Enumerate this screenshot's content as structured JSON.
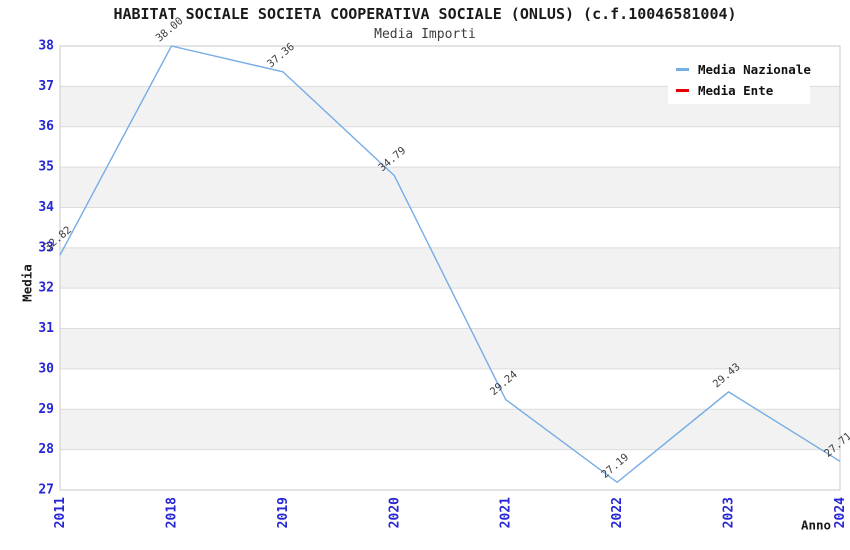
{
  "chart_data": {
    "type": "line",
    "title": "HABITAT SOCIALE SOCIETA COOPERATIVA SOCIALE (ONLUS) (c.f.10046581004)",
    "subtitle": "Media Importi",
    "xlabel": "Anno",
    "ylabel": "Media",
    "categories": [
      "2011",
      "2018",
      "2019",
      "2020",
      "2021",
      "2022",
      "2023",
      "2024"
    ],
    "series": [
      {
        "name": "Media Nazionale",
        "color": "#75ade6",
        "values": [
          32.82,
          38.0,
          37.36,
          34.79,
          29.24,
          27.19,
          29.43,
          27.71
        ],
        "point_labels": [
          "32.82",
          "38.00",
          "37.36",
          "34.79",
          "29.24",
          "27.19",
          "29.43",
          "27.71"
        ]
      },
      {
        "name": "Media Ente",
        "color": "#e60000",
        "values": [],
        "point_labels": []
      }
    ],
    "ylim": [
      27,
      38
    ],
    "yticks": [
      27,
      28,
      29,
      30,
      31,
      32,
      33,
      34,
      35,
      36,
      37,
      38
    ],
    "grid": true,
    "alternating_bands": true,
    "legend_position": "top-right",
    "styles": {
      "tick_color": "#2626d5",
      "band_color": "#f2f2f2",
      "grid_color": "#dcdcdc",
      "border_color": "#c9c9c9",
      "point_label_color": "#3d3d3d",
      "title_color": "#1a1a1a",
      "subtitle_color": "#3c3c3c"
    }
  }
}
